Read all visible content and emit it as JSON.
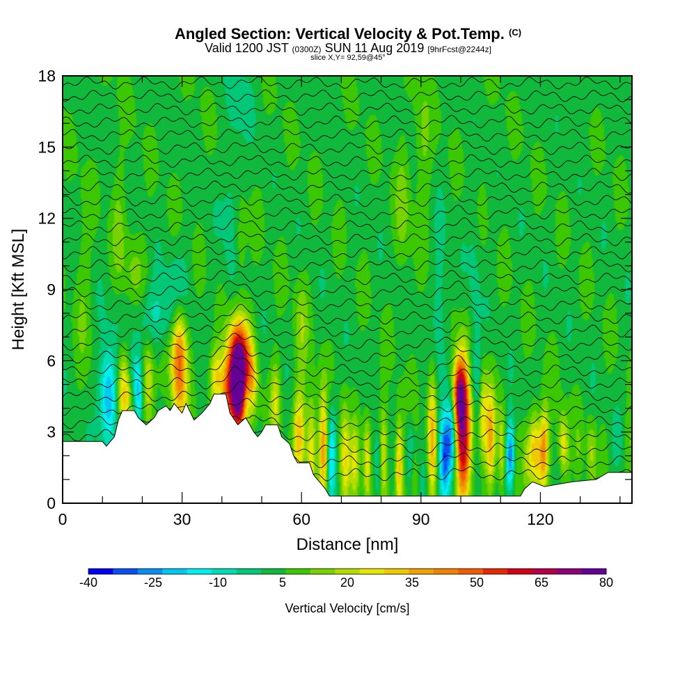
{
  "header": {
    "title_main": "Angled Section: Vertical Velocity & Pot.Temp.",
    "title_unit": "(C)",
    "valid_prefix": "Valid 1200 JST",
    "valid_z": "(0300Z)",
    "valid_date": "SUN 11 Aug 2019",
    "forecast": "[9hrFcst@2244z]",
    "slice": "slice X,Y= 92,59@45°"
  },
  "chart_data": {
    "type": "heatmap",
    "xlabel": "Distance [nm]",
    "ylabel": "Height [Kft MSL]",
    "xlim": [
      0,
      143
    ],
    "ylim": [
      0,
      18
    ],
    "x_ticks": [
      0,
      30,
      60,
      90,
      120
    ],
    "y_ticks": [
      0,
      3,
      6,
      9,
      12,
      15,
      18
    ],
    "colorbar": {
      "label": "Vertical Velocity [cm/s]",
      "tick_labels": [
        "-40",
        "-25",
        "-10",
        "5",
        "20",
        "35",
        "50",
        "65",
        "80"
      ],
      "colors": [
        "#0000f0",
        "#0a50f0",
        "#0a8cf0",
        "#00c8f0",
        "#00f0f0",
        "#00dcb4",
        "#00c878",
        "#10b83c",
        "#3cc800",
        "#78d200",
        "#b4dc00",
        "#e6e600",
        "#f0c800",
        "#f0a000",
        "#f08200",
        "#f05a00",
        "#e62800",
        "#d20014",
        "#b40046",
        "#8c0078",
        "#640096"
      ]
    },
    "terrain_kft": [
      [
        0,
        2.6
      ],
      [
        10,
        2.6
      ],
      [
        11,
        2.4
      ],
      [
        12,
        2.6
      ],
      [
        13,
        2.8
      ],
      [
        14,
        3.5
      ],
      [
        15,
        3.9
      ],
      [
        18,
        3.9
      ],
      [
        19,
        3.6
      ],
      [
        21,
        3.3
      ],
      [
        23,
        3.6
      ],
      [
        24,
        3.9
      ],
      [
        26,
        4.1
      ],
      [
        27,
        3.9
      ],
      [
        28,
        4.2
      ],
      [
        30,
        3.8
      ],
      [
        31,
        4.2
      ],
      [
        33,
        3.5
      ],
      [
        35,
        3.8
      ],
      [
        37,
        4.2
      ],
      [
        38,
        4.6
      ],
      [
        41,
        4.6
      ],
      [
        42,
        3.8
      ],
      [
        44,
        3.3
      ],
      [
        46,
        3.6
      ],
      [
        47,
        3.3
      ],
      [
        48,
        3.0
      ],
      [
        49,
        2.8
      ],
      [
        50,
        3.0
      ],
      [
        51,
        3.3
      ],
      [
        54,
        3.3
      ],
      [
        55,
        2.8
      ],
      [
        57,
        2.5
      ],
      [
        58,
        2.0
      ],
      [
        59,
        1.7
      ],
      [
        62,
        1.7
      ],
      [
        63,
        1.2
      ],
      [
        64,
        1.0
      ],
      [
        65,
        0.8
      ],
      [
        66,
        0.6
      ],
      [
        67,
        0.3
      ],
      [
        100,
        0.3
      ],
      [
        103,
        0.3
      ],
      [
        115,
        0.3
      ],
      [
        116,
        0.6
      ],
      [
        118,
        0.9
      ],
      [
        121,
        0.7
      ],
      [
        128,
        0.9
      ],
      [
        134,
        1.0
      ],
      [
        137,
        1.3
      ],
      [
        143,
        1.3
      ]
    ],
    "velocity_cells": [
      {
        "x": 44.5,
        "y": 5.5,
        "sx": 1.8,
        "sy": 1.6,
        "w": 75
      },
      {
        "x": 43.5,
        "y": 5.0,
        "sx": 1.5,
        "sy": 1.4,
        "w": 45
      },
      {
        "x": 100.5,
        "y": 3.2,
        "sx": 1.6,
        "sy": 2.0,
        "w": 60
      },
      {
        "x": 99.5,
        "y": 4.6,
        "sx": 1.2,
        "sy": 1.0,
        "w": 40
      },
      {
        "x": 29.3,
        "y": 6.0,
        "sx": 1.4,
        "sy": 1.8,
        "w": 45
      },
      {
        "x": 15.5,
        "y": 4.8,
        "sx": 1.3,
        "sy": 1.3,
        "w": 30
      },
      {
        "x": 21.5,
        "y": 5.0,
        "sx": 1.0,
        "sy": 1.4,
        "w": 22
      },
      {
        "x": 38.5,
        "y": 5.3,
        "sx": 1.2,
        "sy": 0.9,
        "w": 25
      },
      {
        "x": 41.0,
        "y": 4.5,
        "sx": 1.0,
        "sy": 1.1,
        "w": 22
      },
      {
        "x": 47.5,
        "y": 5.2,
        "sx": 1.0,
        "sy": 1.0,
        "w": 20
      },
      {
        "x": 53.5,
        "y": 4.3,
        "sx": 0.9,
        "sy": 1.2,
        "w": 18
      },
      {
        "x": 59.5,
        "y": 3.0,
        "sx": 1.1,
        "sy": 1.5,
        "w": 22
      },
      {
        "x": 62.5,
        "y": 2.3,
        "sx": 0.9,
        "sy": 1.6,
        "w": 25
      },
      {
        "x": 65.5,
        "y": 2.5,
        "sx": 0.8,
        "sy": 1.7,
        "w": 28
      },
      {
        "x": 70.8,
        "y": 1.8,
        "sx": 0.8,
        "sy": 1.6,
        "w": 22
      },
      {
        "x": 73.5,
        "y": 1.5,
        "sx": 0.7,
        "sy": 1.3,
        "w": 18
      },
      {
        "x": 76.5,
        "y": 1.8,
        "sx": 0.7,
        "sy": 1.4,
        "w": 20
      },
      {
        "x": 80.5,
        "y": 2.0,
        "sx": 0.8,
        "sy": 1.5,
        "w": 22
      },
      {
        "x": 84.5,
        "y": 1.6,
        "sx": 0.7,
        "sy": 1.5,
        "w": 26
      },
      {
        "x": 88.3,
        "y": 1.7,
        "sx": 0.7,
        "sy": 1.4,
        "w": 24
      },
      {
        "x": 92.8,
        "y": 2.8,
        "sx": 0.8,
        "sy": 2.0,
        "w": 30
      },
      {
        "x": 105.5,
        "y": 3.8,
        "sx": 0.8,
        "sy": 1.5,
        "w": 26
      },
      {
        "x": 107.5,
        "y": 2.8,
        "sx": 0.8,
        "sy": 1.5,
        "w": 30
      },
      {
        "x": 110.3,
        "y": 2.0,
        "sx": 0.7,
        "sy": 1.4,
        "w": 20
      },
      {
        "x": 118.5,
        "y": 2.3,
        "sx": 0.8,
        "sy": 1.2,
        "w": 28
      },
      {
        "x": 121.0,
        "y": 2.4,
        "sx": 0.8,
        "sy": 1.2,
        "w": 32
      },
      {
        "x": 125.5,
        "y": 2.6,
        "sx": 0.8,
        "sy": 0.9,
        "w": 18
      },
      {
        "x": 18.0,
        "y": 9.5,
        "sx": 2.0,
        "sy": 1.5,
        "w": 9
      },
      {
        "x": 44.5,
        "y": 10.5,
        "sx": 1.2,
        "sy": 1.5,
        "w": 10
      },
      {
        "x": 85.5,
        "y": 12.5,
        "sx": 1.3,
        "sy": 2.0,
        "w": 9
      },
      {
        "x": 90.5,
        "y": 15.0,
        "sx": 1.5,
        "sy": 2.0,
        "w": 9
      },
      {
        "x": 5.0,
        "y": 9.0,
        "sx": 1.5,
        "sy": 2.5,
        "w": 6
      },
      {
        "x": 14.0,
        "y": 12.0,
        "sx": 1.3,
        "sy": 2.0,
        "w": 7
      },
      {
        "x": 60.0,
        "y": 7.5,
        "sx": 1.2,
        "sy": 1.5,
        "w": 10
      },
      {
        "x": 11.5,
        "y": 4.5,
        "sx": 1.6,
        "sy": 1.4,
        "w": -30
      },
      {
        "x": 19.0,
        "y": 4.5,
        "sx": 0.8,
        "sy": 1.0,
        "w": -20
      },
      {
        "x": 17.5,
        "y": 5.5,
        "sx": 1.2,
        "sy": 0.8,
        "w": -12
      },
      {
        "x": 46.2,
        "y": 4.5,
        "sx": 0.9,
        "sy": 0.8,
        "w": -22
      },
      {
        "x": 96.3,
        "y": 2.0,
        "sx": 1.3,
        "sy": 1.3,
        "w": -40
      },
      {
        "x": 98.0,
        "y": 2.6,
        "sx": 0.8,
        "sy": 1.5,
        "w": -28
      },
      {
        "x": 112.5,
        "y": 2.0,
        "sx": 0.8,
        "sy": 1.0,
        "w": -35
      },
      {
        "x": 88.0,
        "y": 2.5,
        "sx": 0.8,
        "sy": 1.0,
        "w": -18
      },
      {
        "x": 67.5,
        "y": 2.0,
        "sx": 0.9,
        "sy": 1.5,
        "w": -20
      },
      {
        "x": 79.5,
        "y": 1.5,
        "sx": 0.7,
        "sy": 1.2,
        "w": -15
      },
      {
        "x": 104.5,
        "y": 5.0,
        "sx": 0.9,
        "sy": 1.2,
        "w": -15
      },
      {
        "x": 102.5,
        "y": 5.5,
        "sx": 0.8,
        "sy": 1.0,
        "w": -10
      },
      {
        "x": 22.0,
        "y": 7.8,
        "sx": 5.0,
        "sy": 1.0,
        "w": -12
      },
      {
        "x": 29.0,
        "y": 9.0,
        "sx": 1.8,
        "sy": 1.2,
        "w": -12
      },
      {
        "x": 44.5,
        "y": 7.5,
        "sx": 1.5,
        "sy": 1.5,
        "w": -10
      },
      {
        "x": 42.5,
        "y": 12.0,
        "sx": 1.5,
        "sy": 3.0,
        "w": -8
      },
      {
        "x": 95.0,
        "y": 8.0,
        "sx": 1.5,
        "sy": 2.5,
        "w": -8
      },
      {
        "x": 103.5,
        "y": 9.0,
        "sx": 1.0,
        "sy": 3.0,
        "w": -6
      },
      {
        "x": 45.5,
        "y": 17.0,
        "sx": 2.0,
        "sy": 1.0,
        "w": -6
      },
      {
        "x": 128.0,
        "y": 17.5,
        "sx": 2.5,
        "sy": 1.0,
        "w": -6
      }
    ]
  }
}
